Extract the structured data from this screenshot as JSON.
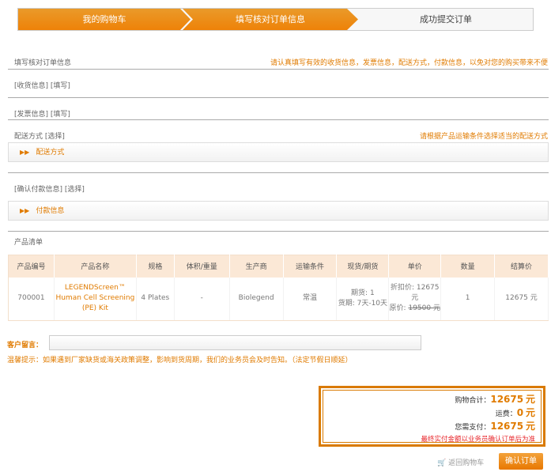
{
  "steps": [
    "我的购物车",
    "填写核对订单信息",
    "成功提交订单"
  ],
  "header": {
    "title": "填写核对订单信息",
    "hint": "请认真填写有效的收货信息，发票信息，配送方式，付款信息，以免对您的购买带来不便"
  },
  "shipping_info": {
    "label": "[收货信息]",
    "action": "[填写]"
  },
  "invoice_info": {
    "label": "[发票信息]",
    "action": "[填写]"
  },
  "delivery": {
    "label": "配送方式",
    "action": "[选择]",
    "hint": "请根据产品运输条件选择适当的配送方式",
    "panel": "配送方式"
  },
  "payment": {
    "label": "[确认付款信息]",
    "action": "[选择]",
    "panel": "付款信息"
  },
  "products": {
    "title": "产品清单",
    "columns": [
      "产品编号",
      "产品名称",
      "规格",
      "体积/重量",
      "生产商",
      "运输条件",
      "现货/期货",
      "单价",
      "数量",
      "结算价"
    ],
    "rows": [
      {
        "id": "700001",
        "name": "LEGENDScreen™ Human Cell Screening (PE) Kit",
        "spec": "4 Plates",
        "volume": "-",
        "maker": "Biolegend",
        "transport": "常温",
        "stock": "期货: 1",
        "lead": "货期: 7天-10天",
        "discount": "折扣价: 12675 元",
        "original_label": "原价:",
        "original": "19500 元",
        "qty": "1",
        "total": "12675 元"
      }
    ]
  },
  "message": {
    "label": "客户留言：",
    "value": ""
  },
  "notice": "温馨提示：如果遇到厂家缺货或海关政策调整，影响到货周期，我们的业务员会及时告知。（法定节假日顺延）",
  "summary": {
    "subtotal_label": "购物合计：",
    "subtotal": "12675",
    "freight_label": "运费：",
    "freight": "0",
    "pay_label": "您需支付：",
    "pay": "12675",
    "unit": "元",
    "note": "最终实付金额以业务员确认订单后为准"
  },
  "actions": {
    "back": "返回购物车",
    "confirm": "确认订单"
  },
  "colors": {
    "accent": "#ee8208",
    "note": "#e8262b"
  }
}
